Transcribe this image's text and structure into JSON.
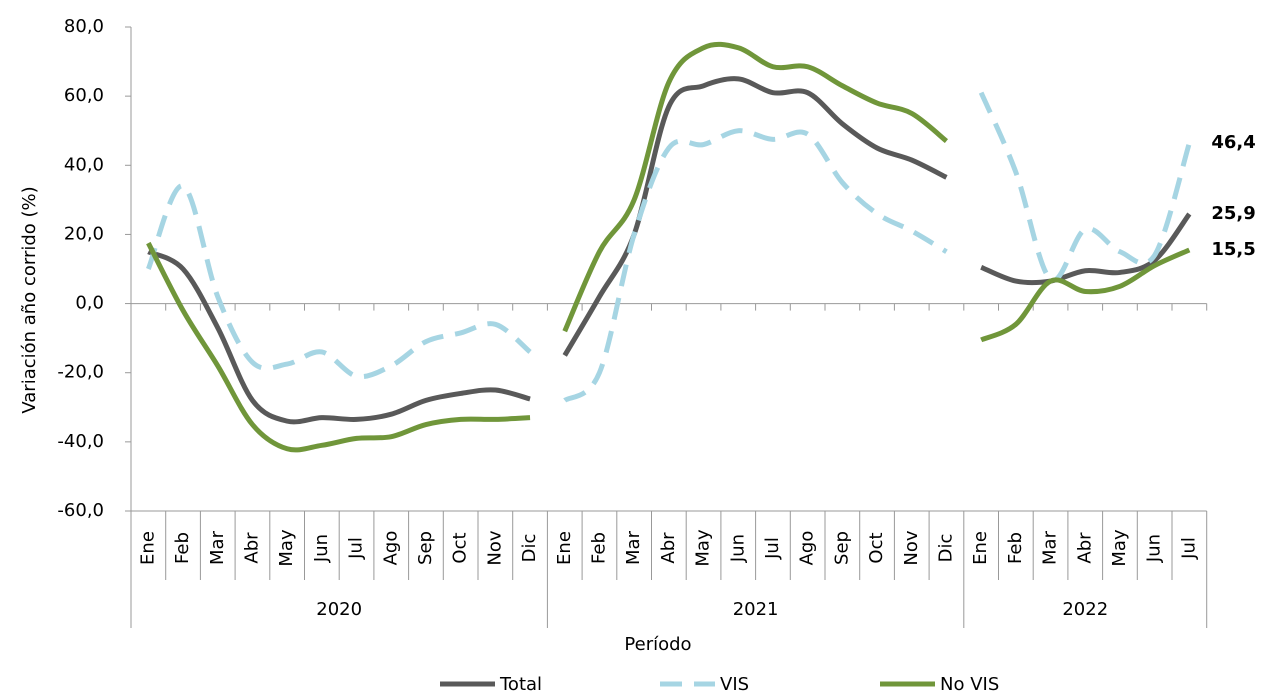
{
  "chart_data": {
    "type": "line",
    "y_label": "Variación año corrido (%)",
    "x_label": "Período",
    "groups": [
      {
        "label": "2020",
        "categories": [
          "Ene",
          "Feb",
          "Mar",
          "Abr",
          "May",
          "Jun",
          "Jul",
          "Ago",
          "Sep",
          "Oct",
          "Nov",
          "Dic"
        ]
      },
      {
        "label": "2021",
        "categories": [
          "Ene",
          "Feb",
          "Mar",
          "Abr",
          "May",
          "Jun",
          "Jul",
          "Ago",
          "Sep",
          "Oct",
          "Nov",
          "Dic"
        ]
      },
      {
        "label": "2022",
        "categories": [
          "Ene",
          "Feb",
          "Mar",
          "Abr",
          "May",
          "Jun",
          "Jul"
        ]
      }
    ],
    "series": [
      {
        "name": "Total",
        "color": "#595959",
        "dashed": false,
        "label_color": "#404040",
        "values": [
          [
            15,
            10,
            -7,
            -28,
            -34,
            -33,
            -33.5,
            -32,
            -28,
            -26,
            -25,
            -27.6
          ],
          [
            -15,
            2,
            20,
            57,
            63,
            65,
            61,
            61,
            52,
            45,
            41.5,
            36.5
          ],
          [
            10.5,
            6.5,
            6.5,
            9.5,
            9,
            12.5,
            25.9
          ]
        ],
        "value_labels": [
          [
            null,
            null,
            null,
            null,
            null,
            null,
            null,
            null,
            null,
            null,
            null,
            null
          ],
          [
            null,
            null,
            null,
            null,
            null,
            null,
            null,
            null,
            null,
            null,
            null,
            null
          ],
          [
            null,
            null,
            null,
            null,
            null,
            null,
            "25,9"
          ]
        ]
      },
      {
        "name": "VIS",
        "color": "#a6d5e3",
        "dashed": true,
        "label_color": "#8eaadb",
        "values": [
          [
            10,
            34,
            2,
            -17,
            -17.5,
            -14,
            -21,
            -18,
            -11,
            -8.5,
            -6,
            -14
          ],
          [
            -28,
            -20,
            20,
            45,
            46,
            50,
            47.5,
            49,
            35,
            26,
            21,
            15
          ],
          [
            61,
            38,
            7,
            21.5,
            15,
            14,
            46.4
          ]
        ],
        "value_labels": [
          [
            null,
            null,
            null,
            null,
            null,
            null,
            null,
            null,
            null,
            null,
            null,
            null
          ],
          [
            null,
            null,
            null,
            null,
            null,
            null,
            null,
            null,
            null,
            null,
            null,
            null
          ],
          [
            null,
            null,
            null,
            null,
            null,
            null,
            "46,4"
          ]
        ]
      },
      {
        "name": "No VIS",
        "color": "#70963a",
        "dashed": false,
        "label_color": "#4f6228",
        "values": [
          [
            17.5,
            -2,
            -18,
            -35,
            -42,
            -41,
            -39,
            -38.5,
            -35,
            -33.5,
            -33.5,
            -33
          ],
          [
            -8,
            15,
            30,
            64,
            74,
            74,
            68.5,
            68.5,
            63,
            58,
            55,
            47
          ],
          [
            -10.5,
            -6,
            6.5,
            3.5,
            5,
            11,
            15.5
          ]
        ],
        "value_labels": [
          [
            null,
            null,
            null,
            null,
            null,
            null,
            null,
            null,
            null,
            null,
            null,
            null
          ],
          [
            null,
            null,
            null,
            null,
            null,
            null,
            null,
            null,
            null,
            null,
            null,
            null
          ],
          [
            null,
            null,
            null,
            null,
            null,
            null,
            "15,5"
          ]
        ]
      }
    ],
    "ylim": [
      -60,
      80
    ],
    "yticks": [
      {
        "value": -60,
        "label": "-60,0"
      },
      {
        "value": -40,
        "label": "-40,0"
      },
      {
        "value": -20,
        "label": "-20,0"
      },
      {
        "value": 0,
        "label": "0,0"
      },
      {
        "value": 20,
        "label": "20,0"
      },
      {
        "value": 40,
        "label": "40,0"
      },
      {
        "value": 60,
        "label": "60,0"
      },
      {
        "value": 80,
        "label": "80,0"
      }
    ]
  }
}
